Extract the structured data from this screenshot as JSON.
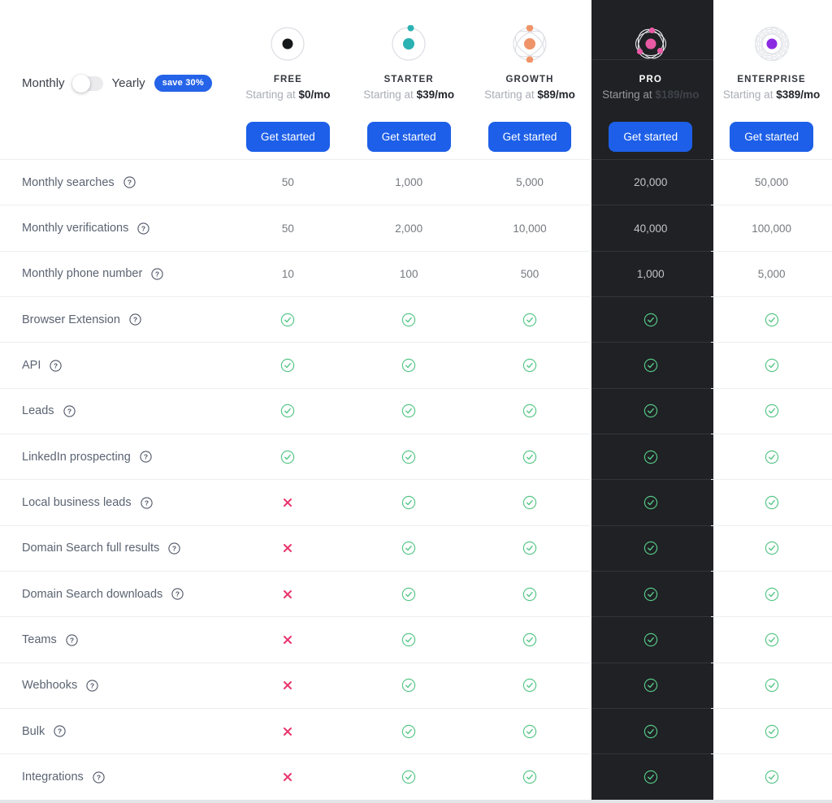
{
  "billing": {
    "monthly_label": "Monthly",
    "yearly_label": "Yearly",
    "badge": "save 30%",
    "selected": "Monthly"
  },
  "plans": [
    {
      "name": "FREE",
      "price_prefix": "Starting at",
      "price": "$0/mo",
      "cta": "Get started",
      "icon": "free-planet-icon",
      "accent": "#17181a",
      "highlighted": false
    },
    {
      "name": "STARTER",
      "price_prefix": "Starting at",
      "price": "$39/mo",
      "cta": "Get started",
      "icon": "starter-orbit-icon",
      "accent": "#2bb2b2",
      "highlighted": false
    },
    {
      "name": "GROWTH",
      "price_prefix": "Starting at",
      "price": "$89/mo",
      "cta": "Get started",
      "icon": "growth-atom-icon",
      "accent": "#ef9469",
      "highlighted": false
    },
    {
      "name": "PRO",
      "price_prefix": "Starting at",
      "price": "$189/mo",
      "cta": "Get started",
      "icon": "pro-atom-icon",
      "accent": "#e95aa5",
      "highlighted": true
    },
    {
      "name": "ENTERPRISE",
      "price_prefix": "Starting at",
      "price": "$389/mo",
      "cta": "Get started",
      "icon": "enterprise-flower-icon",
      "accent": "#8b2be2",
      "highlighted": false
    }
  ],
  "features": [
    {
      "label": "Monthly searches",
      "values": [
        "50",
        "1,000",
        "5,000",
        "20,000",
        "50,000"
      ]
    },
    {
      "label": "Monthly verifications",
      "values": [
        "50",
        "2,000",
        "10,000",
        "40,000",
        "100,000"
      ]
    },
    {
      "label": "Monthly phone number",
      "values": [
        "10",
        "100",
        "500",
        "1,000",
        "5,000"
      ]
    },
    {
      "label": "Browser Extension",
      "values": [
        true,
        true,
        true,
        true,
        true
      ]
    },
    {
      "label": "API",
      "values": [
        true,
        true,
        true,
        true,
        true
      ]
    },
    {
      "label": "Leads",
      "values": [
        true,
        true,
        true,
        true,
        true
      ]
    },
    {
      "label": "LinkedIn prospecting",
      "values": [
        true,
        true,
        true,
        true,
        true
      ]
    },
    {
      "label": "Local business leads",
      "values": [
        false,
        true,
        true,
        true,
        true
      ]
    },
    {
      "label": "Domain Search full results",
      "values": [
        false,
        true,
        true,
        true,
        true
      ]
    },
    {
      "label": "Domain Search downloads",
      "values": [
        false,
        true,
        true,
        true,
        true
      ]
    },
    {
      "label": "Teams",
      "values": [
        false,
        true,
        true,
        true,
        true
      ]
    },
    {
      "label": "Webhooks",
      "values": [
        false,
        true,
        true,
        true,
        true
      ]
    },
    {
      "label": "Bulk",
      "values": [
        false,
        true,
        true,
        true,
        true
      ]
    },
    {
      "label": "Integrations",
      "values": [
        false,
        true,
        true,
        true,
        true
      ]
    }
  ],
  "colors": {
    "cta_blue": "#1d5fe8",
    "badge_blue": "#2563e8",
    "check_green": "#57c687",
    "cross_pink": "#e8356d",
    "highlight_bg": "#1f2124",
    "divider": "#edeef1",
    "label_text": "#5b6472",
    "value_text": "#75797f"
  }
}
